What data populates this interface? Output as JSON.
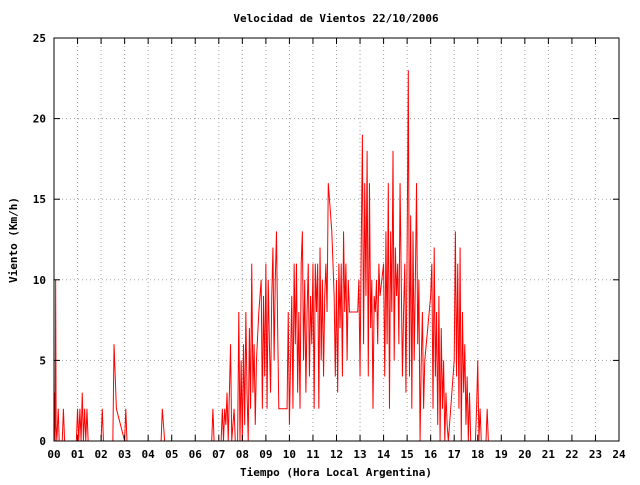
{
  "chart_data": {
    "type": "line",
    "title": "Velocidad de Vientos 22/10/2006",
    "xlabel": "Tiempo (Hora Local Argentina)",
    "ylabel": "Viento (Km/h)",
    "xlim": [
      0,
      24
    ],
    "ylim": [
      0,
      25
    ],
    "x_ticks": [
      {
        "value": 0,
        "label": "00"
      },
      {
        "value": 1,
        "label": "01"
      },
      {
        "value": 2,
        "label": "02"
      },
      {
        "value": 3,
        "label": "03"
      },
      {
        "value": 4,
        "label": "04"
      },
      {
        "value": 5,
        "label": "05"
      },
      {
        "value": 6,
        "label": "06"
      },
      {
        "value": 7,
        "label": "07"
      },
      {
        "value": 8,
        "label": "08"
      },
      {
        "value": 9,
        "label": "09"
      },
      {
        "value": 10,
        "label": "10"
      },
      {
        "value": 11,
        "label": "11"
      },
      {
        "value": 12,
        "label": "12"
      },
      {
        "value": 13,
        "label": "13"
      },
      {
        "value": 14,
        "label": "14"
      },
      {
        "value": 15,
        "label": "15"
      },
      {
        "value": 16,
        "label": "16"
      },
      {
        "value": 17,
        "label": "17"
      },
      {
        "value": 18,
        "label": "18"
      },
      {
        "value": 19,
        "label": "19"
      },
      {
        "value": 20,
        "label": "20"
      },
      {
        "value": 21,
        "label": "21"
      },
      {
        "value": 22,
        "label": "22"
      },
      {
        "value": 23,
        "label": "23"
      },
      {
        "value": 24,
        "label": "24"
      }
    ],
    "y_ticks": [
      {
        "value": 0,
        "label": "0"
      },
      {
        "value": 5,
        "label": "5"
      },
      {
        "value": 10,
        "label": "10"
      },
      {
        "value": 15,
        "label": "15"
      },
      {
        "value": 20,
        "label": "20"
      },
      {
        "value": 25,
        "label": "25"
      }
    ],
    "grid": true,
    "series_color": "#ff0000",
    "series": [
      {
        "values": [
          [
            0.0,
            0
          ],
          [
            0.02,
            3
          ],
          [
            0.05,
            0
          ],
          [
            0.07,
            10
          ],
          [
            0.09,
            1
          ],
          [
            0.12,
            0
          ],
          [
            0.18,
            2
          ],
          [
            0.22,
            0
          ],
          [
            0.35,
            0
          ],
          [
            0.4,
            2
          ],
          [
            0.45,
            0
          ],
          [
            0.95,
            0
          ],
          [
            1.0,
            2
          ],
          [
            1.05,
            0
          ],
          [
            1.1,
            2
          ],
          [
            1.15,
            0
          ],
          [
            1.2,
            3
          ],
          [
            1.25,
            0
          ],
          [
            1.3,
            2
          ],
          [
            1.35,
            0
          ],
          [
            1.4,
            2
          ],
          [
            1.45,
            0
          ],
          [
            2.0,
            0
          ],
          [
            2.05,
            2
          ],
          [
            2.1,
            0
          ],
          [
            2.5,
            0
          ],
          [
            2.55,
            6
          ],
          [
            2.6,
            4
          ],
          [
            2.65,
            2
          ],
          [
            3.0,
            0
          ],
          [
            3.05,
            2
          ],
          [
            3.1,
            0
          ],
          [
            4.55,
            0
          ],
          [
            4.6,
            2
          ],
          [
            4.65,
            1
          ],
          [
            4.7,
            0
          ],
          [
            6.7,
            0
          ],
          [
            6.75,
            2
          ],
          [
            6.8,
            0
          ],
          [
            7.1,
            0
          ],
          [
            7.15,
            2
          ],
          [
            7.2,
            0
          ],
          [
            7.25,
            2
          ],
          [
            7.3,
            1
          ],
          [
            7.35,
            3
          ],
          [
            7.4,
            0
          ],
          [
            7.45,
            3
          ],
          [
            7.5,
            6
          ],
          [
            7.55,
            0
          ],
          [
            7.65,
            2
          ],
          [
            7.7,
            0
          ],
          [
            7.8,
            0
          ],
          [
            7.85,
            8
          ],
          [
            7.9,
            0
          ],
          [
            7.95,
            5
          ],
          [
            8.0,
            0
          ],
          [
            8.05,
            6
          ],
          [
            8.1,
            1
          ],
          [
            8.15,
            8
          ],
          [
            8.2,
            3
          ],
          [
            8.25,
            0
          ],
          [
            8.3,
            7
          ],
          [
            8.35,
            2
          ],
          [
            8.4,
            11
          ],
          [
            8.45,
            3
          ],
          [
            8.5,
            6
          ],
          [
            8.55,
            1
          ],
          [
            8.6,
            5
          ],
          [
            8.7,
            8
          ],
          [
            8.8,
            10
          ],
          [
            8.85,
            2
          ],
          [
            8.9,
            9
          ],
          [
            8.95,
            4
          ],
          [
            9.0,
            11
          ],
          [
            9.05,
            2
          ],
          [
            9.1,
            10
          ],
          [
            9.15,
            6
          ],
          [
            9.2,
            3
          ],
          [
            9.25,
            9
          ],
          [
            9.3,
            12
          ],
          [
            9.35,
            5
          ],
          [
            9.4,
            10
          ],
          [
            9.45,
            13
          ],
          [
            9.5,
            7
          ],
          [
            9.55,
            2
          ],
          [
            9.7,
            2
          ],
          [
            9.9,
            2
          ],
          [
            9.95,
            8
          ],
          [
            10.0,
            1
          ],
          [
            10.05,
            5
          ],
          [
            10.1,
            9
          ],
          [
            10.15,
            2
          ],
          [
            10.2,
            11
          ],
          [
            10.25,
            6
          ],
          [
            10.3,
            11
          ],
          [
            10.35,
            3
          ],
          [
            10.4,
            8
          ],
          [
            10.45,
            2
          ],
          [
            10.5,
            11
          ],
          [
            10.55,
            13
          ],
          [
            10.6,
            5
          ],
          [
            10.65,
            10
          ],
          [
            10.7,
            3
          ],
          [
            10.75,
            8
          ],
          [
            10.8,
            11
          ],
          [
            10.85,
            4
          ],
          [
            10.9,
            9
          ],
          [
            10.95,
            6
          ],
          [
            11.0,
            11
          ],
          [
            11.05,
            2
          ],
          [
            11.1,
            11
          ],
          [
            11.15,
            8
          ],
          [
            11.2,
            11
          ],
          [
            11.25,
            2
          ],
          [
            11.3,
            12
          ],
          [
            11.35,
            5
          ],
          [
            11.4,
            10
          ],
          [
            11.45,
            4
          ],
          [
            11.5,
            9
          ],
          [
            11.55,
            11
          ],
          [
            11.6,
            8
          ],
          [
            11.65,
            16
          ],
          [
            11.7,
            15
          ],
          [
            11.8,
            13
          ],
          [
            11.9,
            9
          ],
          [
            11.95,
            4
          ],
          [
            12.0,
            10
          ],
          [
            12.05,
            3
          ],
          [
            12.1,
            11
          ],
          [
            12.15,
            7
          ],
          [
            12.2,
            11
          ],
          [
            12.25,
            4
          ],
          [
            12.3,
            13
          ],
          [
            12.35,
            8
          ],
          [
            12.4,
            11
          ],
          [
            12.45,
            5
          ],
          [
            12.5,
            10
          ],
          [
            12.55,
            8
          ],
          [
            12.9,
            8
          ],
          [
            12.95,
            10
          ],
          [
            13.0,
            4
          ],
          [
            13.05,
            12
          ],
          [
            13.1,
            19
          ],
          [
            13.15,
            6
          ],
          [
            13.2,
            16
          ],
          [
            13.25,
            9
          ],
          [
            13.3,
            18
          ],
          [
            13.35,
            4
          ],
          [
            13.4,
            16
          ],
          [
            13.45,
            7
          ],
          [
            13.5,
            10
          ],
          [
            13.55,
            2
          ],
          [
            13.6,
            9
          ],
          [
            13.65,
            8
          ],
          [
            13.7,
            10
          ],
          [
            13.75,
            6
          ],
          [
            13.8,
            11
          ],
          [
            13.85,
            9
          ],
          [
            14.0,
            11
          ],
          [
            14.05,
            4
          ],
          [
            14.1,
            13
          ],
          [
            14.15,
            6
          ],
          [
            14.2,
            16
          ],
          [
            14.25,
            2
          ],
          [
            14.3,
            13
          ],
          [
            14.35,
            8
          ],
          [
            14.4,
            18
          ],
          [
            14.45,
            5
          ],
          [
            14.5,
            12
          ],
          [
            14.55,
            9
          ],
          [
            14.6,
            11
          ],
          [
            14.65,
            6
          ],
          [
            14.7,
            16
          ],
          [
            14.75,
            10
          ],
          [
            14.8,
            4
          ],
          [
            14.85,
            8
          ],
          [
            14.9,
            11
          ],
          [
            14.95,
            3
          ],
          [
            15.0,
            12
          ],
          [
            15.05,
            23
          ],
          [
            15.1,
            4
          ],
          [
            15.15,
            14
          ],
          [
            15.2,
            2
          ],
          [
            15.25,
            13
          ],
          [
            15.3,
            5
          ],
          [
            15.35,
            10
          ],
          [
            15.4,
            16
          ],
          [
            15.45,
            6
          ],
          [
            15.5,
            10
          ],
          [
            15.55,
            0
          ],
          [
            15.6,
            5
          ],
          [
            15.65,
            8
          ],
          [
            15.7,
            2
          ],
          [
            15.75,
            5
          ],
          [
            16.0,
            9
          ],
          [
            16.05,
            11
          ],
          [
            16.1,
            2
          ],
          [
            16.15,
            12
          ],
          [
            16.2,
            4
          ],
          [
            16.25,
            8
          ],
          [
            16.3,
            1
          ],
          [
            16.35,
            9
          ],
          [
            16.4,
            0
          ],
          [
            16.45,
            7
          ],
          [
            16.5,
            2
          ],
          [
            16.55,
            5
          ],
          [
            16.6,
            0
          ],
          [
            16.65,
            3
          ],
          [
            16.7,
            1
          ],
          [
            16.75,
            0
          ],
          [
            17.0,
            5
          ],
          [
            17.05,
            13
          ],
          [
            17.1,
            4
          ],
          [
            17.15,
            11
          ],
          [
            17.2,
            2
          ],
          [
            17.25,
            12
          ],
          [
            17.3,
            0
          ],
          [
            17.35,
            8
          ],
          [
            17.4,
            3
          ],
          [
            17.45,
            6
          ],
          [
            17.5,
            1
          ],
          [
            17.55,
            4
          ],
          [
            17.6,
            0
          ],
          [
            17.65,
            3
          ],
          [
            17.7,
            0
          ],
          [
            17.9,
            0
          ],
          [
            17.95,
            2
          ],
          [
            18.0,
            5
          ],
          [
            18.05,
            0
          ],
          [
            18.1,
            2
          ],
          [
            18.15,
            0
          ],
          [
            18.35,
            0
          ],
          [
            18.4,
            2
          ],
          [
            18.45,
            0
          ]
        ]
      }
    ]
  }
}
